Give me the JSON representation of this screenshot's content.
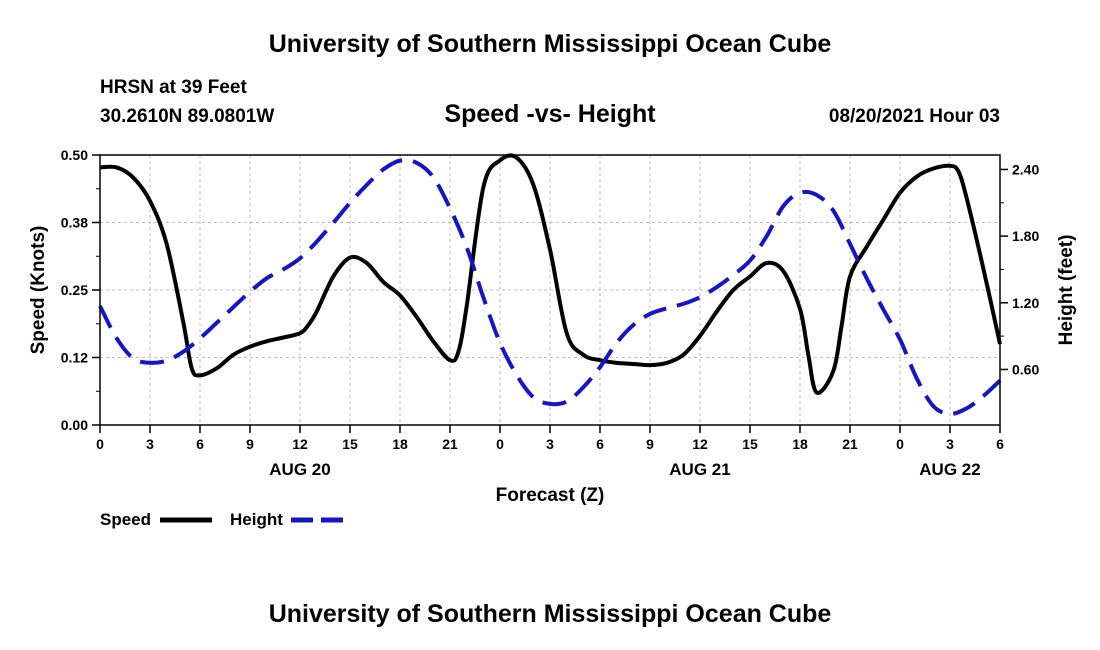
{
  "header": {
    "title": "University of Southern Mississippi Ocean Cube",
    "station": "HRSN at 39 Feet",
    "coords": "30.2610N  89.0801W",
    "subtitle": "Speed -vs- Height",
    "datetime": "08/20/2021 Hour 03"
  },
  "footer": {
    "title": "University of Southern Mississippi Ocean Cube"
  },
  "colors": {
    "speed": "#000000",
    "height": "#1515c8",
    "grid": "#bdbdbd"
  },
  "chart_data": {
    "type": "line",
    "title": "Speed -vs- Height",
    "xlabel": "Forecast (Z)",
    "ylabel": "Speed (Knots)",
    "y2label": "Height (feet)",
    "xlim": [
      0,
      54
    ],
    "ylim": [
      0,
      0.5
    ],
    "y2lim": [
      0.1,
      2.53
    ],
    "x_ticks": [
      0,
      3,
      6,
      9,
      12,
      15,
      18,
      21,
      24,
      27,
      30,
      33,
      36,
      39,
      42,
      45,
      48,
      51,
      54
    ],
    "x_tick_labels": [
      "0",
      "3",
      "6",
      "9",
      "12",
      "15",
      "18",
      "21",
      "0",
      "3",
      "6",
      "9",
      "12",
      "15",
      "18",
      "21",
      "0",
      "3",
      "6"
    ],
    "y_ticks": [
      0,
      0.125,
      0.25,
      0.375,
      0.5
    ],
    "y_tick_labels": [
      "0.00",
      "0.12",
      "0.25",
      "0.38",
      "0.50"
    ],
    "y2_ticks": [
      0.6,
      1.2,
      1.8,
      2.4
    ],
    "y2_tick_labels": [
      "0.60",
      "1.20",
      "1.80",
      "2.40"
    ],
    "date_labels": [
      {
        "x": 12,
        "label": "AUG 20"
      },
      {
        "x": 36,
        "label": "AUG 21"
      },
      {
        "x": 51,
        "label": "AUG 22"
      }
    ],
    "grid": true,
    "legend": {
      "placement": "bottom-left",
      "speed_label": "Speed",
      "height_label": "Height"
    },
    "series": [
      {
        "name": "Speed",
        "axis": "left",
        "style": "solid",
        "x": [
          0,
          1,
          2,
          3,
          4,
          5,
          5.5,
          6,
          7,
          8,
          9,
          10,
          11,
          12,
          12.5,
          13,
          14,
          15,
          16,
          17,
          18,
          19,
          20,
          21,
          21.5,
          22,
          23,
          24,
          25,
          26,
          27,
          28,
          29,
          30,
          31,
          32,
          33,
          34,
          35,
          36,
          37,
          38,
          39,
          40,
          41,
          42,
          42.5,
          43,
          44,
          44.5,
          45,
          46,
          47,
          48,
          49,
          50,
          51,
          51.5,
          52,
          53,
          54
        ],
        "values": [
          0.477,
          0.477,
          0.458,
          0.415,
          0.335,
          0.19,
          0.105,
          0.092,
          0.105,
          0.13,
          0.145,
          0.155,
          0.162,
          0.17,
          0.185,
          0.21,
          0.275,
          0.31,
          0.3,
          0.265,
          0.24,
          0.2,
          0.155,
          0.12,
          0.135,
          0.22,
          0.44,
          0.49,
          0.495,
          0.445,
          0.325,
          0.17,
          0.13,
          0.12,
          0.115,
          0.113,
          0.111,
          0.115,
          0.13,
          0.165,
          0.21,
          0.25,
          0.275,
          0.3,
          0.285,
          0.215,
          0.13,
          0.06,
          0.1,
          0.185,
          0.275,
          0.33,
          0.38,
          0.43,
          0.46,
          0.475,
          0.48,
          0.47,
          0.42,
          0.29,
          0.15
        ]
      },
      {
        "name": "Height",
        "axis": "right",
        "style": "dashed",
        "x": [
          0,
          1,
          2,
          3,
          4,
          5,
          6,
          7,
          8,
          9,
          10,
          11,
          12,
          13,
          14,
          15,
          16,
          17,
          18,
          19,
          20,
          21,
          22,
          23,
          24,
          25,
          26,
          27,
          28,
          29,
          30,
          31,
          32,
          33,
          34,
          35,
          36,
          37,
          38,
          39,
          40,
          41,
          42,
          43,
          44,
          45,
          46,
          47,
          48,
          49,
          50,
          51,
          52,
          53,
          54
        ],
        "values": [
          1.17,
          0.88,
          0.7,
          0.66,
          0.68,
          0.76,
          0.88,
          1.02,
          1.16,
          1.3,
          1.42,
          1.5,
          1.6,
          1.75,
          1.92,
          2.1,
          2.26,
          2.4,
          2.48,
          2.46,
          2.33,
          2.05,
          1.7,
          1.25,
          0.84,
          0.55,
          0.35,
          0.29,
          0.31,
          0.44,
          0.62,
          0.84,
          1.0,
          1.1,
          1.15,
          1.19,
          1.25,
          1.34,
          1.45,
          1.58,
          1.8,
          2.07,
          2.19,
          2.17,
          2.03,
          1.73,
          1.42,
          1.14,
          0.87,
          0.52,
          0.27,
          0.2,
          0.25,
          0.36,
          0.5
        ]
      }
    ]
  }
}
